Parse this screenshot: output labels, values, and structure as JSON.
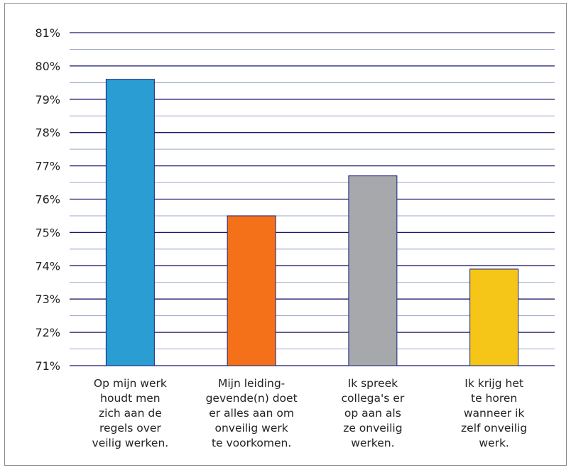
{
  "chart_data": {
    "type": "bar",
    "title": "",
    "xlabel": "",
    "ylabel": "",
    "ylim": [
      71,
      81
    ],
    "ytick_labels": [
      "71%",
      "72%",
      "73%",
      "74%",
      "75%",
      "76%",
      "77%",
      "78%",
      "79%",
      "80%",
      "81%"
    ],
    "grid": true,
    "categories": [
      "Op mijn werk houdt men zich aan de regels over veilig werken.",
      "Mijn leiding-gevende(n) doet er alles aan om onveilig werk te voorkomen.",
      "Ik spreek collega's er op aan als ze onveilig werken.",
      "Ik krijg het te horen wanneer ik zelf onveilig werk."
    ],
    "category_lines": [
      [
        "Op mijn werk",
        "houdt men",
        "zich aan de",
        "regels over",
        "veilig werken."
      ],
      [
        "Mijn leiding-",
        "gevende(n) doet",
        "er alles aan om",
        "onveilig werk",
        "te voorkomen."
      ],
      [
        "Ik spreek",
        "collega's er",
        "op aan als",
        "ze onveilig",
        "werken."
      ],
      [
        "Ik krijg het",
        "te horen",
        "wanneer ik",
        "zelf onveilig",
        "werk."
      ]
    ],
    "values": [
      79.6,
      75.5,
      76.7,
      73.9
    ],
    "colors": [
      "#2a9dd2",
      "#f47019",
      "#a6a8ab",
      "#f5c518"
    ],
    "gridline_color": "#1a1a6e",
    "minor_gridline_color": "#9aa7c7",
    "bar_border_color": "#1a237e"
  }
}
